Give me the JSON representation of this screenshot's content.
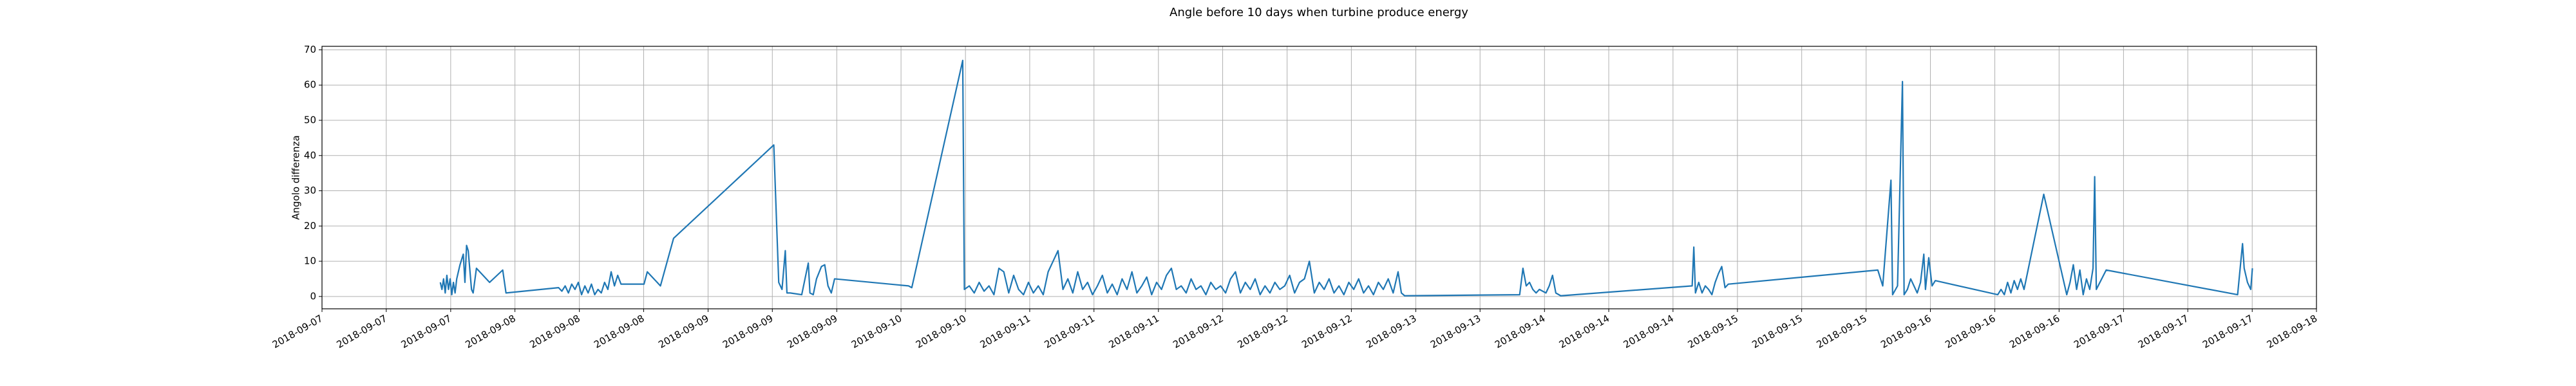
{
  "chart_data": {
    "type": "line",
    "title": "Angle before 10 days when turbine produce energy",
    "ylabel": "Angolo differenza",
    "color": "#1f77b4",
    "grid": true,
    "x": [
      17781.648,
      17781.657,
      17781.666,
      17781.675,
      17781.684,
      17781.693,
      17781.702,
      17781.711,
      17781.72,
      17781.729,
      17781.738,
      17781.756,
      17781.774,
      17781.783,
      17781.792,
      17781.801,
      17781.819,
      17781.828,
      17781.846,
      17781.918,
      17781.99,
      17782.008,
      17782.296,
      17782.314,
      17782.332,
      17782.35,
      17782.368,
      17782.386,
      17782.404,
      17782.422,
      17782.44,
      17782.458,
      17782.476,
      17782.494,
      17782.512,
      17782.53,
      17782.548,
      17782.566,
      17782.584,
      17782.602,
      17782.62,
      17782.638,
      17782.764,
      17782.782,
      17782.836,
      17782.854,
      17782.926,
      17783.475,
      17783.502,
      17783.52,
      17783.538,
      17783.547,
      17783.565,
      17783.628,
      17783.646,
      17783.664,
      17783.673,
      17783.691,
      17783.709,
      17783.736,
      17783.754,
      17783.772,
      17783.79,
      17783.808,
      17784.213,
      17784.231,
      17784.51,
      17784.519,
      17784.546,
      17784.573,
      17784.6,
      17784.627,
      17784.654,
      17784.681,
      17784.708,
      17784.735,
      17784.762,
      17784.789,
      17784.816,
      17784.843,
      17784.87,
      17784.897,
      17784.924,
      17784.951,
      17784.978,
      17785.005,
      17785.032,
      17785.059,
      17785.086,
      17785.113,
      17785.14,
      17785.167,
      17785.194,
      17785.221,
      17785.248,
      17785.275,
      17785.302,
      17785.329,
      17785.356,
      17785.383,
      17785.41,
      17785.437,
      17785.464,
      17785.491,
      17785.518,
      17785.545,
      17785.572,
      17785.599,
      17785.626,
      17785.653,
      17785.68,
      17785.707,
      17785.734,
      17785.761,
      17785.788,
      17785.815,
      17785.842,
      17785.869,
      17785.896,
      17785.923,
      17785.95,
      17785.977,
      17786.004,
      17786.031,
      17786.058,
      17786.085,
      17786.112,
      17786.139,
      17786.166,
      17786.193,
      17786.22,
      17786.247,
      17786.274,
      17786.301,
      17786.328,
      17786.355,
      17786.382,
      17786.409,
      17786.436,
      17786.463,
      17786.49,
      17786.517,
      17786.544,
      17786.571,
      17786.598,
      17786.625,
      17786.652,
      17786.679,
      17786.706,
      17786.733,
      17786.76,
      17786.787,
      17786.814,
      17786.841,
      17786.868,
      17786.895,
      17786.913,
      17786.931,
      17787.561,
      17787.579,
      17787.597,
      17787.615,
      17787.633,
      17787.651,
      17787.669,
      17787.705,
      17787.723,
      17787.741,
      17787.759,
      17787.786,
      17788.506,
      17788.515,
      17788.524,
      17788.542,
      17788.56,
      17788.578,
      17788.596,
      17788.614,
      17788.632,
      17788.65,
      17788.668,
      17788.686,
      17788.704,
      17789.523,
      17789.55,
      17789.595,
      17789.604,
      17789.631,
      17789.658,
      17789.667,
      17789.685,
      17789.703,
      17789.721,
      17789.739,
      17789.757,
      17789.775,
      17789.784,
      17789.802,
      17789.82,
      17789.838,
      17790.18,
      17790.198,
      17790.216,
      17790.234,
      17790.252,
      17790.27,
      17790.288,
      17790.306,
      17790.324,
      17790.432,
      17790.558,
      17790.576,
      17790.594,
      17790.612,
      17790.63,
      17790.648,
      17790.666,
      17790.684,
      17790.702,
      17790.711,
      17790.72,
      17790.774,
      17791.494,
      17791.521,
      17791.53,
      17791.548,
      17791.566,
      17791.575
    ],
    "values": [
      4,
      2,
      5,
      1,
      6,
      2,
      5,
      0.5,
      4,
      1,
      5,
      9,
      12,
      4,
      14.5,
      13,
      2,
      1,
      8,
      4,
      7.5,
      1,
      2.5,
      1.5,
      3,
      1,
      3.5,
      2,
      4,
      0.5,
      3,
      1,
      3.5,
      0.5,
      2,
      1,
      4,
      2,
      7,
      3,
      6,
      3.5,
      3.5,
      7,
      4,
      3,
      16.5,
      43,
      4,
      2,
      13,
      1,
      1,
      0.5,
      5,
      9.5,
      1,
      0.5,
      5,
      8.5,
      9,
      3,
      1,
      5,
      3,
      2.5,
      67,
      2,
      3,
      1,
      4,
      1.5,
      3,
      0.5,
      8,
      7,
      1,
      6,
      2,
      0.5,
      4,
      1,
      3,
      0.5,
      7,
      10,
      13,
      2,
      5,
      1,
      7,
      2,
      4,
      0.5,
      3,
      6,
      1,
      3.5,
      0.5,
      5,
      2,
      7,
      1,
      3,
      5.5,
      0.5,
      4,
      2,
      6,
      8,
      2,
      3,
      1,
      5,
      2,
      3,
      0.5,
      4,
      2,
      3,
      1,
      5,
      7,
      1,
      4,
      2,
      5,
      0.5,
      3,
      1,
      4,
      2,
      3,
      6,
      1,
      4,
      5,
      10,
      1,
      4,
      2,
      5,
      1,
      3,
      0.5,
      4,
      2,
      5,
      1,
      3,
      0.5,
      4,
      2,
      5,
      1,
      7,
      1,
      0.2,
      0.5,
      8,
      3,
      4,
      2,
      1,
      2,
      1,
      3,
      6,
      1,
      0.2,
      3,
      14,
      1,
      4,
      1,
      3,
      2,
      0.5,
      4,
      6.5,
      8.5,
      2.5,
      3.5,
      7.5,
      3,
      33,
      0.5,
      3,
      61,
      0.5,
      2,
      5,
      3,
      1,
      4,
      12,
      2,
      11,
      3,
      4.5,
      0.5,
      2,
      0.5,
      4,
      1,
      4.5,
      2,
      5,
      2,
      29,
      0.5,
      4,
      9,
      2,
      7.5,
      0.5,
      5,
      2,
      8,
      34,
      2,
      7.5,
      0.5,
      15,
      8,
      4,
      2,
      8
    ],
    "xlim": [
      17781,
      17791.926
    ],
    "xticks": [
      {
        "value": 17781,
        "label": "2018-09-07"
      },
      {
        "value": 17781.352,
        "label": "2018-09-07"
      },
      {
        "value": 17781.705,
        "label": "2018-09-07"
      },
      {
        "value": 17782.057,
        "label": "2018-09-08"
      },
      {
        "value": 17782.41,
        "label": "2018-09-08"
      },
      {
        "value": 17782.762,
        "label": "2018-09-08"
      },
      {
        "value": 17783.115,
        "label": "2018-09-09"
      },
      {
        "value": 17783.467,
        "label": "2018-09-09"
      },
      {
        "value": 17783.82,
        "label": "2018-09-09"
      },
      {
        "value": 17784.172,
        "label": "2018-09-10"
      },
      {
        "value": 17784.525,
        "label": "2018-09-10"
      },
      {
        "value": 17784.877,
        "label": "2018-09-11"
      },
      {
        "value": 17785.229,
        "label": "2018-09-11"
      },
      {
        "value": 17785.582,
        "label": "2018-09-11"
      },
      {
        "value": 17785.934,
        "label": "2018-09-12"
      },
      {
        "value": 17786.287,
        "label": "2018-09-12"
      },
      {
        "value": 17786.639,
        "label": "2018-09-12"
      },
      {
        "value": 17786.992,
        "label": "2018-09-13"
      },
      {
        "value": 17787.344,
        "label": "2018-09-13"
      },
      {
        "value": 17787.697,
        "label": "2018-09-14"
      },
      {
        "value": 17788.049,
        "label": "2018-09-14"
      },
      {
        "value": 17788.401,
        "label": "2018-09-14"
      },
      {
        "value": 17788.754,
        "label": "2018-09-15"
      },
      {
        "value": 17789.106,
        "label": "2018-09-15"
      },
      {
        "value": 17789.459,
        "label": "2018-09-15"
      },
      {
        "value": 17789.811,
        "label": "2018-09-16"
      },
      {
        "value": 17790.164,
        "label": "2018-09-16"
      },
      {
        "value": 17790.516,
        "label": "2018-09-16"
      },
      {
        "value": 17790.869,
        "label": "2018-09-17"
      },
      {
        "value": 17791.221,
        "label": "2018-09-17"
      },
      {
        "value": 17791.574,
        "label": "2018-09-17"
      },
      {
        "value": 17791.926,
        "label": "2018-09-18"
      }
    ],
    "ylim": [
      -3.5,
      71
    ],
    "yticks": [
      0,
      10,
      20,
      30,
      40,
      50,
      60,
      70
    ]
  }
}
